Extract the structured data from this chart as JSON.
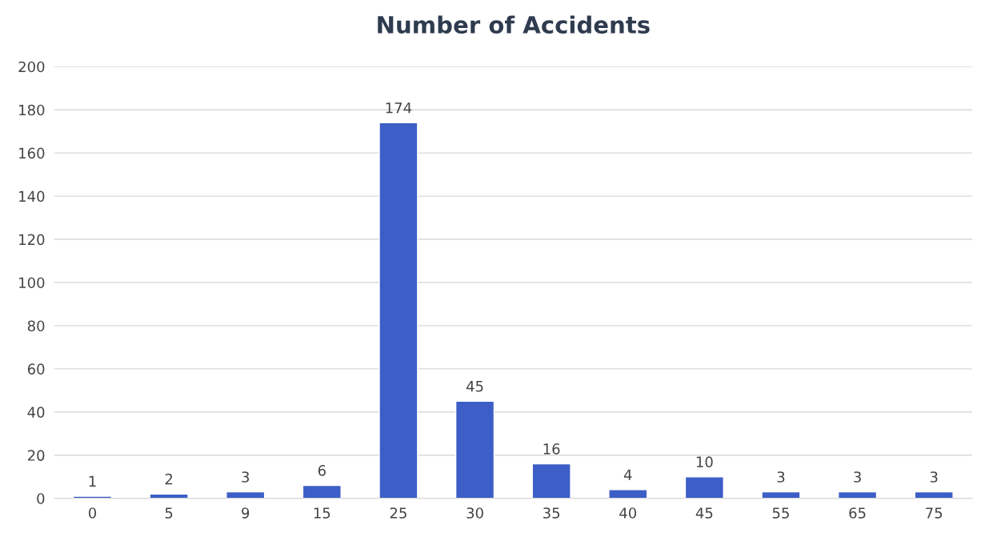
{
  "chart_data": {
    "type": "bar",
    "title": "Number of Accidents",
    "categories": [
      "0",
      "5",
      "9",
      "15",
      "25",
      "30",
      "35",
      "40",
      "45",
      "55",
      "65",
      "75"
    ],
    "values": [
      1,
      2,
      3,
      6,
      174,
      45,
      16,
      4,
      10,
      3,
      3,
      3
    ],
    "color": "#3d5ec6",
    "ylim": [
      0,
      200
    ],
    "yticks": [
      0,
      20,
      40,
      60,
      80,
      100,
      120,
      140,
      160,
      180,
      200
    ],
    "grid": "y",
    "data_labels": true
  }
}
